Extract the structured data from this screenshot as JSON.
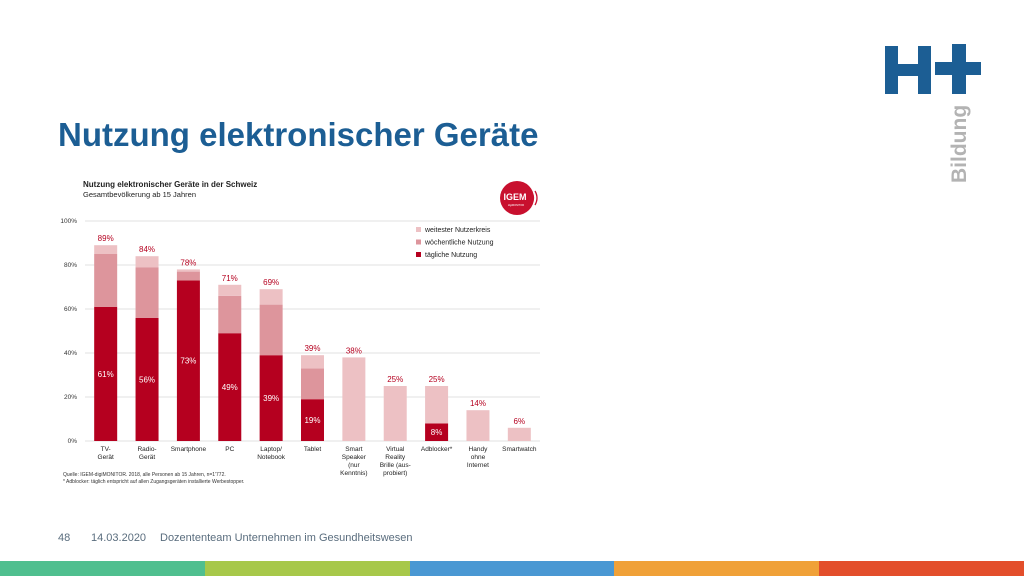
{
  "slide": {
    "title": "Nutzung elektronischer Geräte",
    "logo_text": "Bildung",
    "footer": {
      "page": "48",
      "date": "14.03.2020",
      "author": "Dozententeam Unternehmen im Gesundheitswesen"
    },
    "bar_colors": [
      "#4fbf8f",
      "#a7c84a",
      "#4a98d3",
      "#f0a138",
      "#e34e2b"
    ]
  },
  "igem_logo": {
    "text": "IGEM",
    "subtext": "digiMONITOR"
  },
  "colors": {
    "daily": "#b5001f",
    "weekly": "#dd959c",
    "widest": "#edc1c4",
    "label": "#b5001f",
    "title_blue": "#1c5e94"
  },
  "chart_data": {
    "type": "bar",
    "stacked": true,
    "title": "Nutzung elektronischer Geräte in der Schweiz",
    "subtitle": "Gesamtbevölkerung ab 15 Jahren",
    "categories": [
      [
        "TV-",
        "Gerät"
      ],
      [
        "Radio-",
        "Gerät"
      ],
      [
        "Smartphone"
      ],
      [
        "PC"
      ],
      [
        "Laptop/",
        "Notebook"
      ],
      [
        "Tablet"
      ],
      [
        "Smart",
        "Speaker",
        "(nur",
        "Kenntnis)"
      ],
      [
        "Virtual",
        "Reality",
        "Brille (aus-",
        "probiert)"
      ],
      [
        "Adblocker*"
      ],
      [
        "Handy",
        "ohne",
        "Internet"
      ],
      [
        "Smartwatch"
      ]
    ],
    "series": [
      {
        "name": "tägliche Nutzung",
        "values": [
          61,
          56,
          73,
          49,
          39,
          19,
          0,
          0,
          8,
          0,
          0
        ]
      },
      {
        "name": "wöchentliche Nutzung",
        "values": [
          24,
          23,
          4,
          17,
          23,
          14,
          0,
          0,
          0,
          0,
          0
        ]
      },
      {
        "name": "weitester Nutzerkreis",
        "values": [
          4,
          5,
          1,
          5,
          7,
          6,
          38,
          25,
          17,
          14,
          6
        ]
      }
    ],
    "total_labels": [
      "89%",
      "84%",
      "78%",
      "71%",
      "69%",
      "39%",
      "38%",
      "25%",
      "25%",
      "14%",
      "6%"
    ],
    "daily_labels": [
      "61%",
      "56%",
      "73%",
      "49%",
      "39%",
      "19%",
      "",
      "",
      "8%",
      "",
      ""
    ],
    "ylim": [
      0,
      100
    ],
    "yticks": [
      "0%",
      "20%",
      "40%",
      "60%",
      "80%",
      "100%"
    ],
    "legend_order": [
      "weitester Nutzerkreis",
      "wöchentliche Nutzung",
      "tägliche Nutzung"
    ],
    "legend_position": "top-right",
    "grid": true,
    "footnotes": [
      "Quelle: IGEM-digiMONITOR. 2018, alle Personen ab 15 Jahren, n=1'772.",
      "* Adblocker: täglich entspricht auf allen Zugangsgeräten installierte Werbestopper."
    ]
  }
}
